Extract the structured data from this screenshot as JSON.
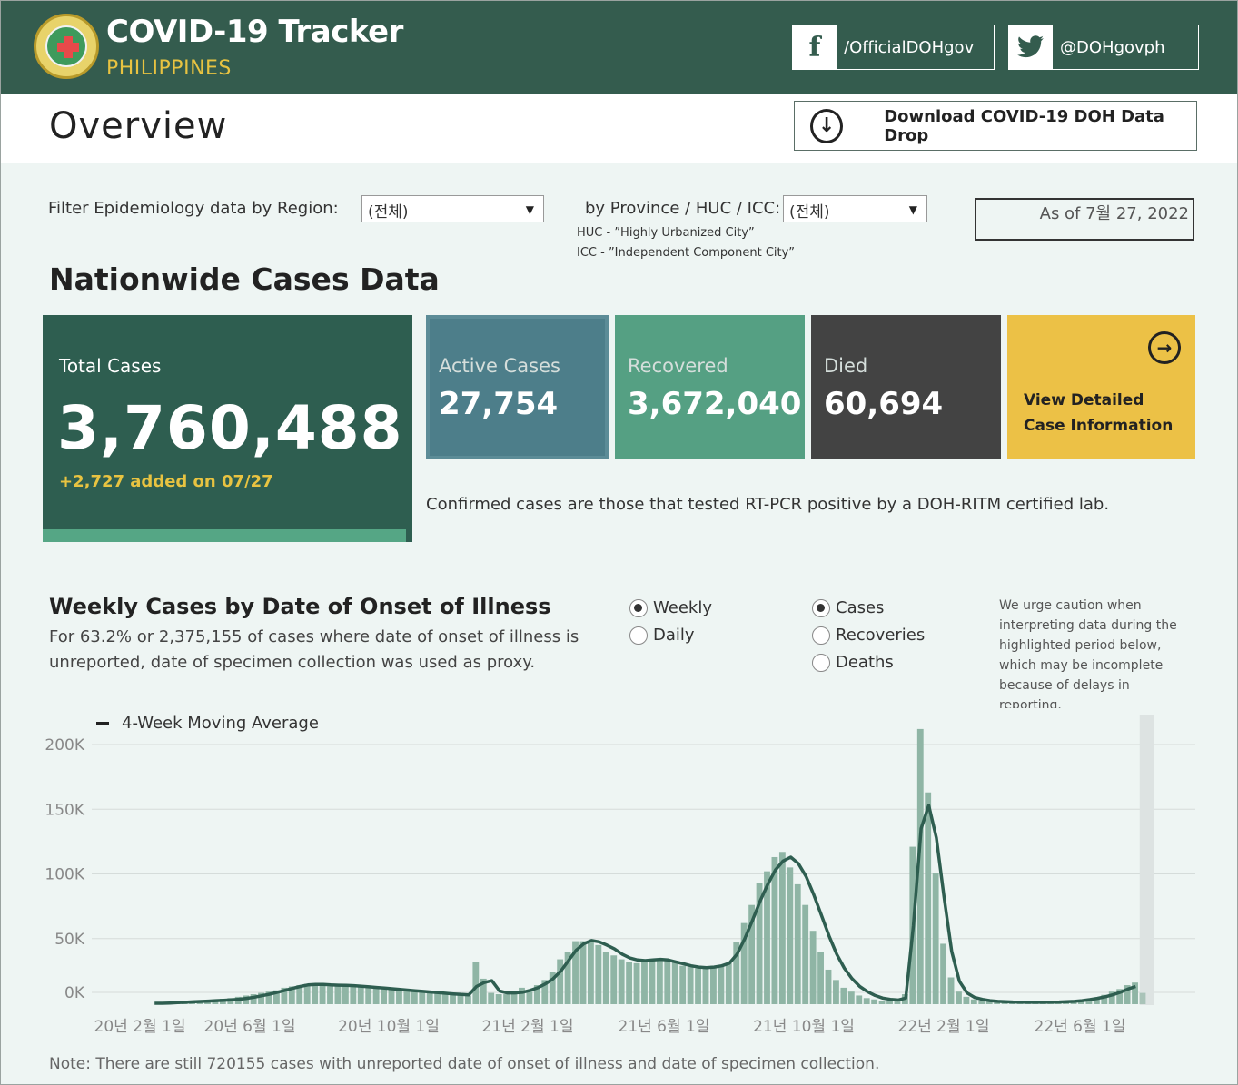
{
  "header": {
    "title": "COVID-19 Tracker",
    "subtitle": "PHILIPPINES",
    "facebook_label": "/OfficialDOHgov",
    "twitter_label": "@DOHgovph",
    "colors": {
      "header_bg": "#345c4e",
      "accent": "#e8c341"
    }
  },
  "overview": {
    "title": "Overview",
    "download_label": "Download COVID-19 DOH Data Drop"
  },
  "filters": {
    "region_label": "Filter Epidemiology data by Region:",
    "region_value": "(전체)",
    "province_label": "by Province / HUC / ICC:",
    "province_value": "(전체)",
    "huc_note": "HUC - ”Highly Urbanized City”",
    "icc_note": "ICC - ”Independent Component City”",
    "as_of": "As of 7월 27, 2022"
  },
  "nationwide": {
    "title": "Nationwide Cases Data",
    "total_label": "Total Cases",
    "total_value": "3,760,488",
    "total_added": "+2,727 added on 07/27",
    "active_label": "Active Cases",
    "active_value": "27,754",
    "recovered_label": "Recovered",
    "recovered_value": "3,672,040",
    "died_label": "Died",
    "died_value": "60,694",
    "view_label": "View Detailed Case Information",
    "confirmed_note": "Confirmed cases are those that tested RT-PCR positive by a DOH-RITM certified lab.",
    "colors": {
      "total": "#2e5e50",
      "active": "#4d7e8a",
      "recovered": "#55a083",
      "died": "#434343",
      "view": "#ecc146"
    }
  },
  "weekly": {
    "title": "Weekly Cases by Date of Onset of Illness",
    "description": "For 63.2% or 2,375,155 of cases where date of onset of illness is unreported, date of specimen collection was used as proxy.",
    "period_options": [
      {
        "label": "Weekly",
        "selected": true
      },
      {
        "label": "Daily",
        "selected": false
      }
    ],
    "metric_options": [
      {
        "label": "Cases",
        "selected": true
      },
      {
        "label": "Recoveries",
        "selected": false
      },
      {
        "label": "Deaths",
        "selected": false
      }
    ],
    "caution": "We urge caution when interpreting data during the highlighted period below, which may be incomplete because of delays in reporting.",
    "legend_label": "4-Week Moving Average"
  },
  "chart_data": {
    "type": "bar",
    "y_ticks": [
      "0K",
      "50K",
      "100K",
      "150K",
      "200K"
    ],
    "ylim": [
      0,
      210000
    ],
    "x_tick_labels": [
      "20년 2월 1일",
      "20년 6월 1일",
      "20년 10월 1일",
      "21년 2월 1일",
      "21년 6월 1일",
      "21년 10월 1일",
      "22년 2월 1일",
      "22년 6월 1일"
    ],
    "bar_color": "#8fb5a5",
    "line_color": "#2e5e50",
    "highlight_color": "#dde3e2",
    "series": [
      {
        "type": "bar",
        "values": [
          0,
          0,
          200,
          500,
          1000,
          1500,
          2000,
          2500,
          3000,
          3500,
          4000,
          5000,
          6000,
          7000,
          8000,
          9000,
          10000,
          12000,
          13000,
          14000,
          15000,
          14000,
          14000,
          13000,
          13500,
          14000,
          13500,
          12500,
          12000,
          11500,
          11000,
          10500,
          10000,
          9500,
          9000,
          8500,
          8000,
          7500,
          7000,
          6500,
          6000,
          6000,
          32000,
          19000,
          8000,
          7000,
          7000,
          8000,
          12000,
          9000,
          14000,
          18000,
          24000,
          34000,
          40000,
          48000,
          48000,
          47000,
          45000,
          40000,
          37000,
          34000,
          32000,
          31000,
          33000,
          34000,
          34000,
          33000,
          32000,
          29000,
          28000,
          27000,
          27000,
          29000,
          29000,
          31000,
          47000,
          62000,
          76000,
          93000,
          102000,
          113000,
          117000,
          105000,
          92000,
          76000,
          56000,
          40000,
          26000,
          18000,
          12000,
          9000,
          6000,
          4000,
          3000,
          2000,
          2000,
          1500,
          7000,
          121000,
          212000,
          163000,
          101000,
          46000,
          20000,
          9000,
          5000,
          3000,
          2000,
          1500,
          1000,
          800,
          800,
          700,
          700,
          700,
          800,
          900,
          1000,
          1200,
          1500,
          2000,
          3000,
          4500,
          6500,
          9000,
          11000,
          14000,
          16000,
          8000
        ]
      },
      {
        "type": "line",
        "name": "4-Week Moving Average",
        "values": [
          0,
          0,
          200,
          500,
          800,
          1100,
          1400,
          1700,
          2000,
          2300,
          2700,
          3100,
          3800,
          4700,
          5800,
          7000,
          8500,
          10000,
          11500,
          13000,
          14200,
          14600,
          14500,
          14200,
          14000,
          13800,
          13600,
          13200,
          12700,
          12200,
          11700,
          11200,
          10700,
          10200,
          9700,
          9200,
          8700,
          8200,
          7700,
          7200,
          6800,
          6500,
          13000,
          16000,
          17500,
          9500,
          8000,
          8000,
          8500,
          10000,
          12000,
          15000,
          19000,
          25000,
          33000,
          41000,
          46000,
          48500,
          47500,
          45000,
          42000,
          38000,
          35000,
          33500,
          33000,
          33500,
          34000,
          33500,
          32000,
          30500,
          29000,
          28000,
          27500,
          28000,
          29000,
          31000,
          38000,
          50000,
          64000,
          79000,
          92000,
          103000,
          110000,
          113000,
          108000,
          98000,
          84000,
          68000,
          52000,
          38000,
          27000,
          19000,
          13000,
          9000,
          6000,
          4000,
          3000,
          2500,
          4000,
          60000,
          135000,
          153000,
          128000,
          82000,
          40000,
          17000,
          8000,
          4500,
          3000,
          2000,
          1500,
          1200,
          1000,
          900,
          800,
          750,
          800,
          900,
          1000,
          1200,
          1500,
          2000,
          2800,
          3800,
          5000,
          6500,
          8500,
          11000,
          13000,
          11000
        ]
      }
    ],
    "highlight_start_index": 130
  },
  "footnote": "Note: There are still 720155 cases with unreported date of onset of illness and date of specimen collection."
}
